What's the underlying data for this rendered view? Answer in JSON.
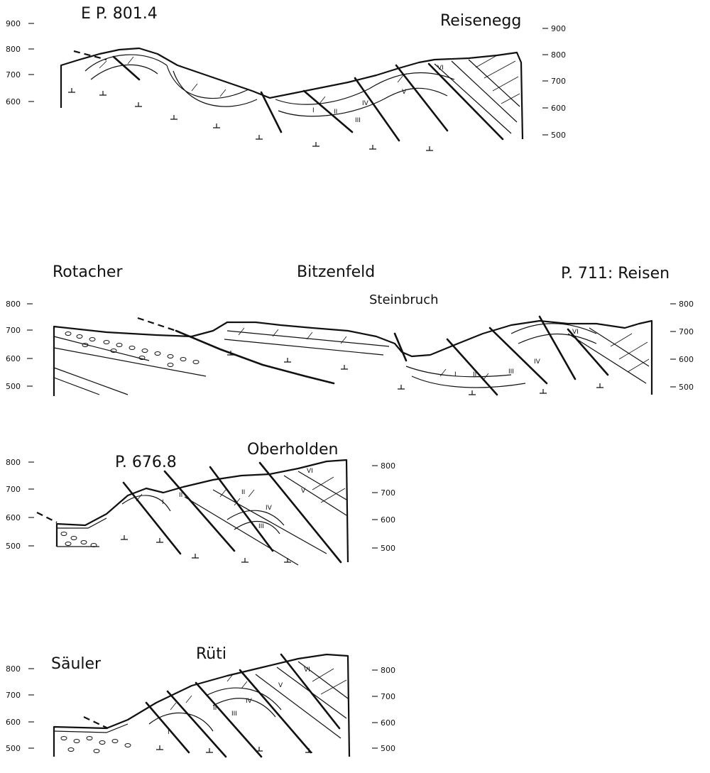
{
  "sections": [
    {
      "id": "section-1",
      "labels": [
        "E P. 801.4",
        "Reisenegg"
      ],
      "left_ticks": [
        "900",
        "800",
        "700",
        "600"
      ],
      "right_ticks": [
        "900",
        "800",
        "700",
        "600",
        "500"
      ],
      "roman": [
        "I",
        "II",
        "III",
        "IV",
        "V",
        "VI"
      ]
    },
    {
      "id": "section-2",
      "labels": [
        "Rotacher",
        "Bitzenfeld",
        "Steinbruch",
        "P. 711: Reisen"
      ],
      "left_ticks": [
        "800",
        "700",
        "600",
        "500"
      ],
      "right_ticks": [
        "800",
        "700",
        "600",
        "500"
      ],
      "roman": [
        "I",
        "II",
        "III",
        "IV",
        "VI"
      ]
    },
    {
      "id": "section-3",
      "labels": [
        "P. 676.8",
        "Oberholden"
      ],
      "left_ticks": [
        "800",
        "700",
        "600",
        "500"
      ],
      "right_ticks": [
        "800",
        "700",
        "600",
        "500"
      ],
      "roman": [
        "I",
        "II",
        "II",
        "III",
        "IV",
        "V",
        "VI"
      ]
    },
    {
      "id": "section-4",
      "labels": [
        "Säuler",
        "Rüti"
      ],
      "left_ticks": [
        "800",
        "700",
        "600",
        "500"
      ],
      "right_ticks": [
        "800",
        "700",
        "600",
        "500"
      ],
      "roman": [
        "I",
        "II",
        "III",
        "IV",
        "V",
        "VI"
      ]
    }
  ]
}
